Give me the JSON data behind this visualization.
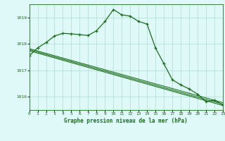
{
  "title": "Graphe pression niveau de la mer (hPa)",
  "bg_color": "#dff8f8",
  "grid_color": "#aaddcc",
  "line_color": "#1a6e1a",
  "ylim": [
    1015.5,
    1019.5
  ],
  "xlim": [
    0,
    23
  ],
  "yticks": [
    1016,
    1017,
    1018,
    1019
  ],
  "xticks": [
    0,
    1,
    2,
    3,
    4,
    5,
    6,
    7,
    8,
    9,
    10,
    11,
    12,
    13,
    14,
    15,
    16,
    17,
    18,
    19,
    20,
    21,
    22,
    23
  ],
  "series1_x": [
    0,
    1,
    2,
    3,
    4,
    5,
    6,
    7,
    8,
    9,
    10,
    11,
    12,
    13,
    14,
    15,
    16,
    17,
    18,
    19,
    20,
    21,
    22,
    23
  ],
  "series1_y": [
    1017.55,
    1017.85,
    1018.05,
    1018.3,
    1018.4,
    1018.38,
    1018.35,
    1018.32,
    1018.5,
    1018.85,
    1019.3,
    1019.1,
    1019.05,
    1018.85,
    1018.75,
    1017.85,
    1017.25,
    1016.65,
    1016.45,
    1016.3,
    1016.1,
    1015.82,
    1015.87,
    1015.7
  ],
  "diag_lines": [
    {
      "x0": 0,
      "y0": 1017.82,
      "x1": 23,
      "y1": 1015.78
    },
    {
      "x0": 0,
      "y0": 1017.78,
      "x1": 23,
      "y1": 1015.72
    },
    {
      "x0": 0,
      "y0": 1017.74,
      "x1": 23,
      "y1": 1015.67
    }
  ]
}
